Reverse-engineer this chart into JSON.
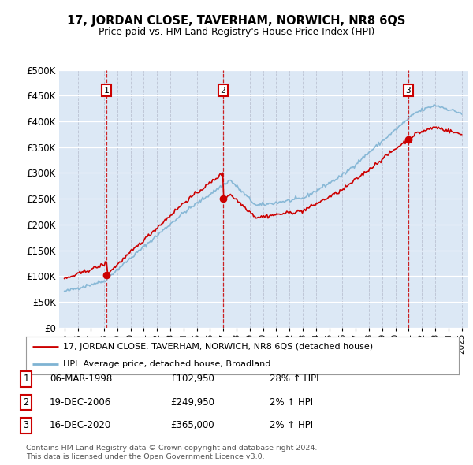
{
  "title": "17, JORDAN CLOSE, TAVERHAM, NORWICH, NR8 6QS",
  "subtitle": "Price paid vs. HM Land Registry's House Price Index (HPI)",
  "legend_line1": "17, JORDAN CLOSE, TAVERHAM, NORWICH, NR8 6QS (detached house)",
  "legend_line2": "HPI: Average price, detached house, Broadland",
  "footnote1": "Contains HM Land Registry data © Crown copyright and database right 2024.",
  "footnote2": "This data is licensed under the Open Government Licence v3.0.",
  "transactions": [
    {
      "num": 1,
      "date": "06-MAR-1998",
      "price": "£102,950",
      "hpi": "28% ↑ HPI",
      "year": 1998.18,
      "price_val": 102950
    },
    {
      "num": 2,
      "date": "19-DEC-2006",
      "price": "£249,950",
      "hpi": "2% ↑ HPI",
      "year": 2006.97,
      "price_val": 249950
    },
    {
      "num": 3,
      "date": "16-DEC-2020",
      "price": "£365,000",
      "hpi": "2% ↑ HPI",
      "year": 2020.97,
      "price_val": 365000
    }
  ],
  "hpi_color": "#7fb3d3",
  "price_color": "#cc0000",
  "marker_color": "#cc0000",
  "plot_bg": "#dce8f5",
  "ylim": [
    0,
    500000
  ],
  "yticks": [
    0,
    50000,
    100000,
    150000,
    200000,
    250000,
    300000,
    350000,
    400000,
    450000,
    500000
  ]
}
